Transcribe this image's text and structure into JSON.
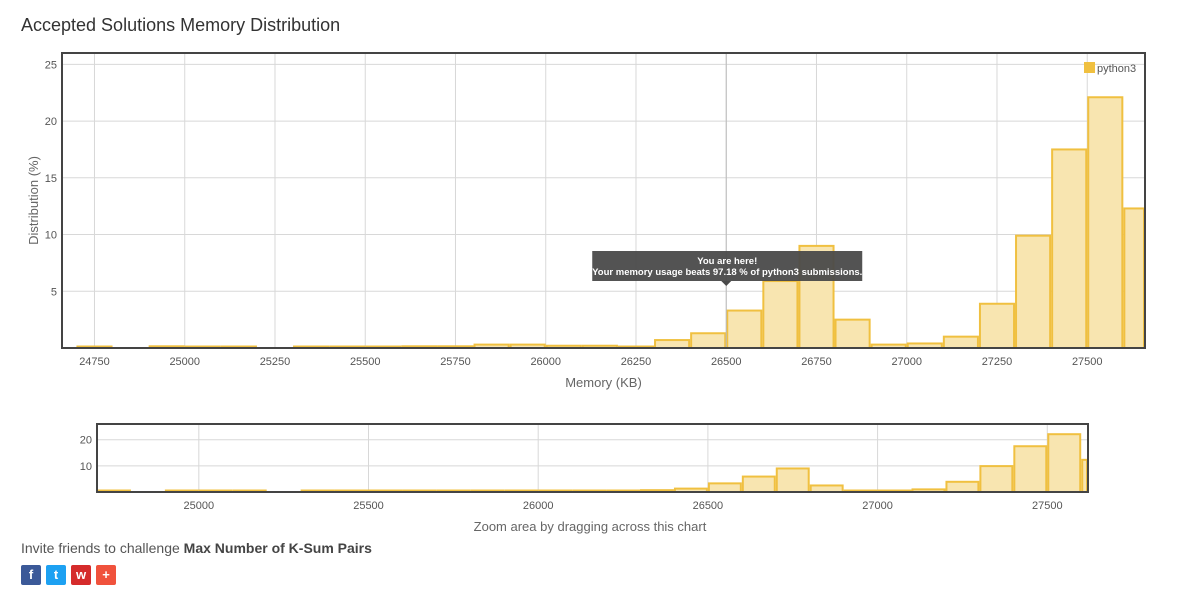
{
  "title": "Accepted Solutions Memory Distribution",
  "main_chart": {
    "xlabel": "Memory (KB)",
    "ylabel": "Distribution (%)"
  },
  "tooltip": {
    "line1": "You are here!",
    "line2": "Your memory usage beats 97.18 % of python3 submissions."
  },
  "zoom_label": "Zoom area by dragging across this chart",
  "invite": {
    "prefix": "Invite friends to challenge ",
    "problem": "Max Number of K-Sum Pairs"
  },
  "social": [
    {
      "name": "facebook-icon",
      "glyph": "f",
      "color": "#3b5998"
    },
    {
      "name": "twitter-icon",
      "glyph": "t",
      "color": "#1da1f2"
    },
    {
      "name": "weibo-icon",
      "glyph": "w",
      "color": "#d52b2b"
    },
    {
      "name": "more-share-icon",
      "glyph": "+",
      "color": "#f0523c"
    }
  ],
  "chart_data": {
    "type": "bar",
    "bin_width": 100,
    "x": [
      24700,
      24800,
      24900,
      25000,
      25100,
      25200,
      25300,
      25400,
      25500,
      25600,
      25700,
      25800,
      25900,
      26000,
      26100,
      26200,
      26300,
      26400,
      26500,
      26600,
      26700,
      26800,
      26900,
      27000,
      27100,
      27200,
      27300,
      27400,
      27500,
      27600
    ],
    "series": [
      {
        "name": "python3",
        "color": "#f0c040",
        "values": [
          0.1,
          0,
          0.15,
          0.1,
          0.1,
          0,
          0.1,
          0.1,
          0.1,
          0.15,
          0.15,
          0.3,
          0.3,
          0.2,
          0.2,
          0.1,
          0.7,
          1.3,
          3.3,
          5.9,
          9.0,
          2.5,
          0.3,
          0.4,
          1.0,
          3.9,
          9.9,
          17.5,
          22.1,
          12.3
        ]
      }
    ],
    "xlim": [
      24660,
      27660
    ],
    "ylim": [
      0,
      26
    ],
    "xticks": [
      24750,
      25000,
      25250,
      25500,
      25750,
      26000,
      26250,
      26500,
      26750,
      27000,
      27250,
      27500
    ],
    "yticks": [
      5,
      10,
      15,
      20,
      25
    ],
    "zoom_xticks": [
      25000,
      25500,
      26000,
      26500,
      27000,
      27500
    ],
    "zoom_yticks": [
      10,
      20
    ],
    "zoom_xlim": [
      24700,
      27620
    ],
    "zoom_ylim": [
      0,
      26
    ],
    "marker_x": 26500,
    "legend_position": "top-right",
    "grid": true
  }
}
